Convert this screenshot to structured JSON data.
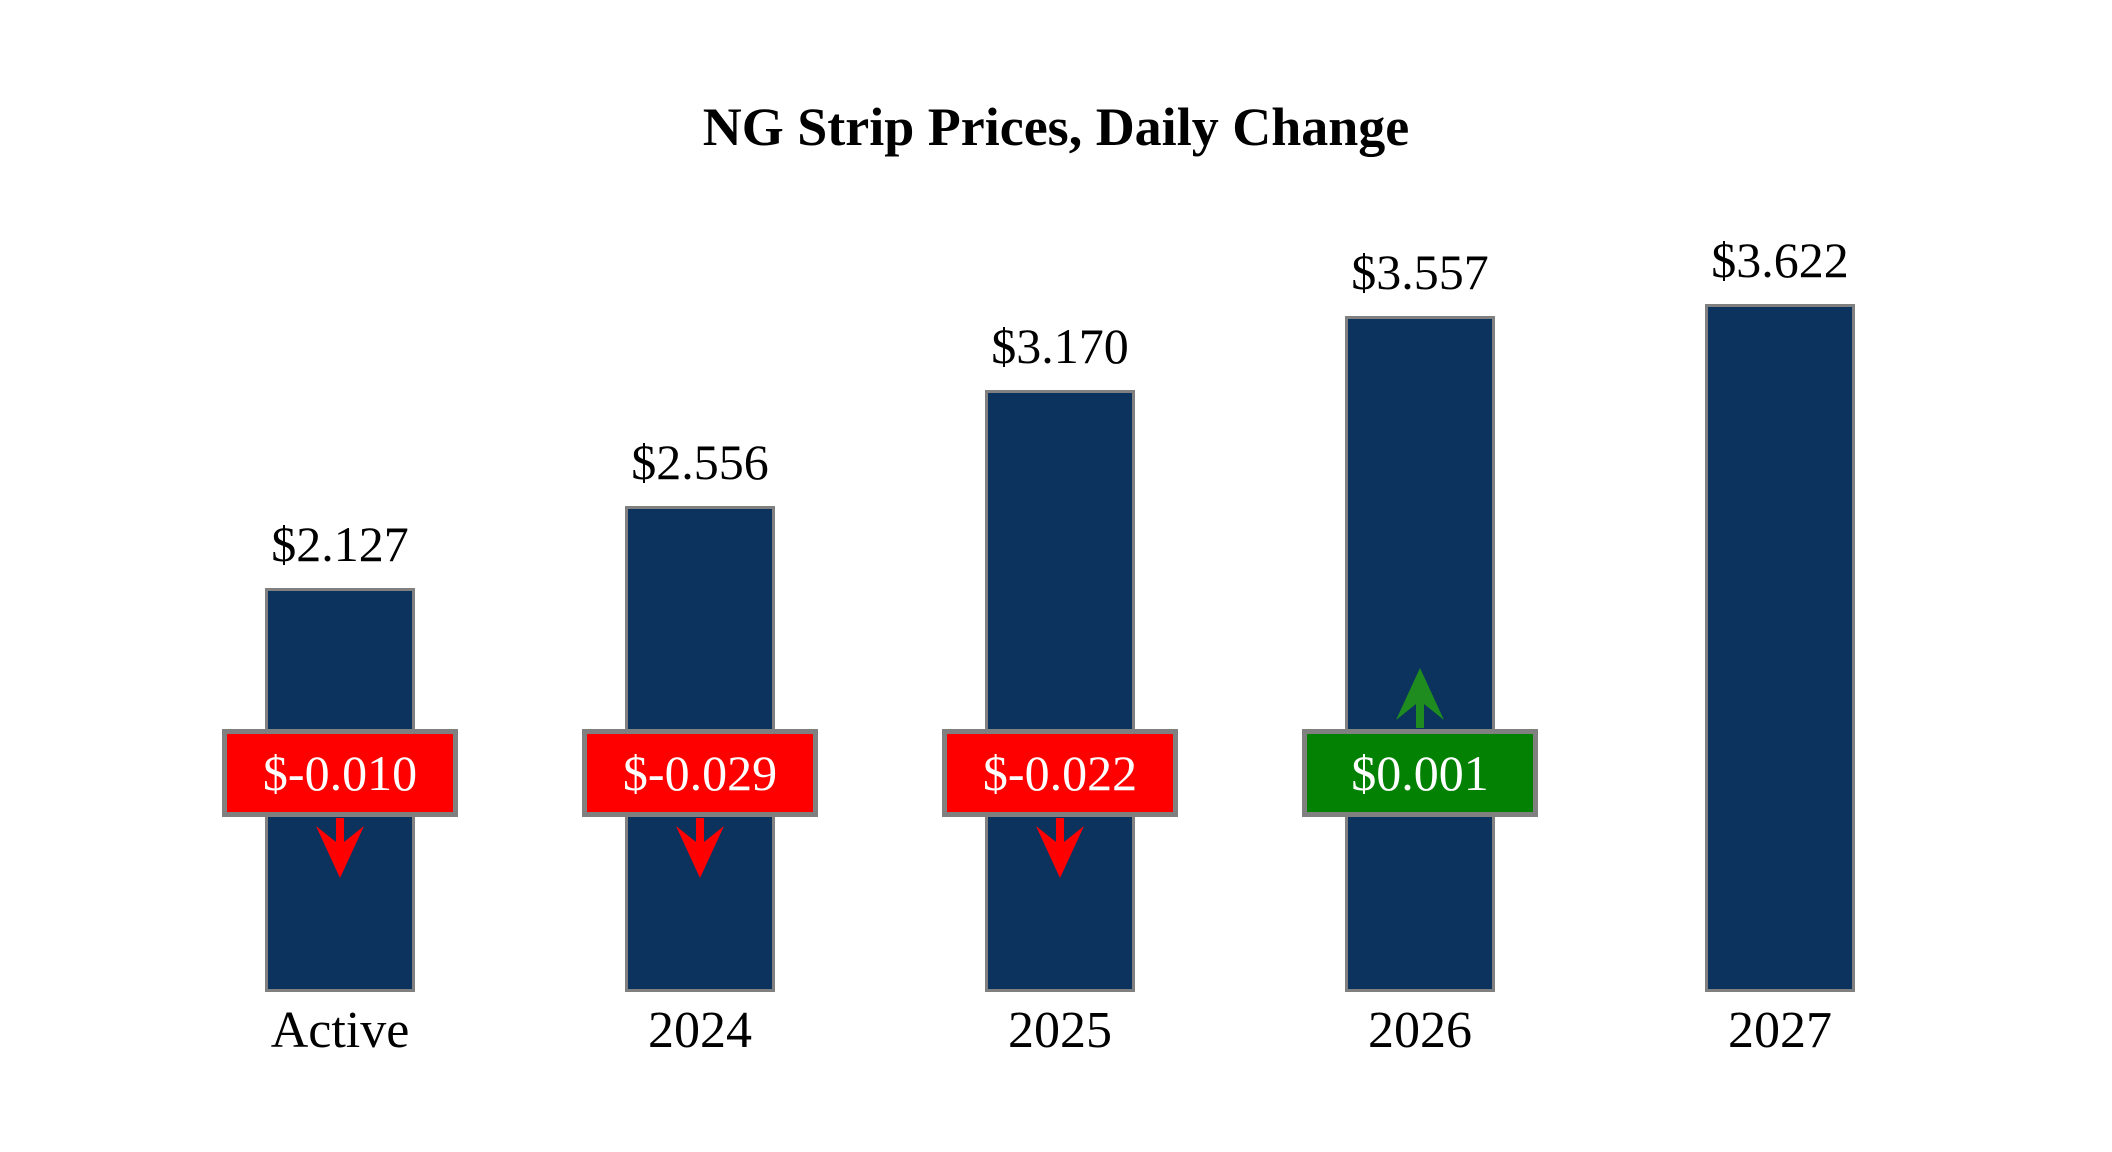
{
  "chart_data": {
    "type": "bar",
    "title": "NG Strip Prices, Daily Change",
    "categories": [
      "Active",
      "2024",
      "2025",
      "2026",
      "2027"
    ],
    "values": [
      2.127,
      2.556,
      3.17,
      3.557,
      3.622
    ],
    "value_labels": [
      "$2.127",
      "$2.556",
      "$3.170",
      "$3.557",
      "$3.622"
    ],
    "daily_changes": [
      -0.01,
      -0.029,
      -0.022,
      0.001,
      null
    ],
    "change_labels": [
      "$-0.010",
      "$-0.029",
      "$-0.022",
      "$0.001",
      null
    ],
    "change_directions": [
      "down",
      "down",
      "down",
      "up",
      "none"
    ],
    "xlabel": "",
    "ylabel": "",
    "ylim": [
      0,
      3.8
    ],
    "grid": false,
    "legend": false,
    "colors": {
      "bar": "#0C335E",
      "bar_border": "#808080",
      "negative_badge": "#FF0000",
      "negative_arrow": "#FF0000",
      "positive_badge": "#028102",
      "positive_arrow": "#1F8C1F",
      "badge_border": "#808080",
      "badge_text": "#FFFFFF",
      "label_text": "#000000",
      "background": "#FFFFFF"
    }
  }
}
